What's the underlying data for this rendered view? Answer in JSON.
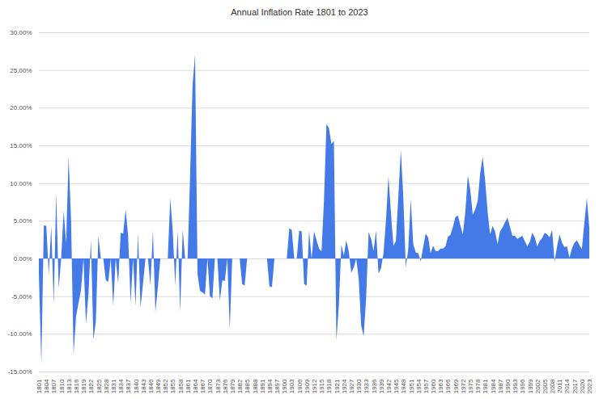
{
  "chart_data": {
    "type": "area",
    "title": "Annual Inflation Rate 1801 to 2023",
    "color": "#4479e8",
    "grid": true,
    "x": [
      1801,
      1802,
      1803,
      1804,
      1805,
      1806,
      1807,
      1808,
      1809,
      1810,
      1811,
      1812,
      1813,
      1814,
      1815,
      1816,
      1817,
      1818,
      1819,
      1820,
      1821,
      1822,
      1823,
      1824,
      1825,
      1826,
      1827,
      1828,
      1829,
      1830,
      1831,
      1832,
      1833,
      1834,
      1835,
      1836,
      1837,
      1838,
      1839,
      1840,
      1841,
      1842,
      1843,
      1844,
      1845,
      1846,
      1847,
      1848,
      1849,
      1850,
      1851,
      1852,
      1853,
      1854,
      1855,
      1856,
      1857,
      1858,
      1859,
      1860,
      1861,
      1862,
      1863,
      1864,
      1865,
      1866,
      1867,
      1868,
      1869,
      1870,
      1871,
      1872,
      1873,
      1874,
      1875,
      1876,
      1877,
      1878,
      1879,
      1880,
      1881,
      1882,
      1883,
      1884,
      1885,
      1886,
      1887,
      1888,
      1889,
      1890,
      1891,
      1892,
      1893,
      1894,
      1895,
      1896,
      1897,
      1898,
      1899,
      1900,
      1901,
      1902,
      1903,
      1904,
      1905,
      1906,
      1907,
      1908,
      1909,
      1910,
      1911,
      1912,
      1913,
      1914,
      1915,
      1916,
      1917,
      1918,
      1919,
      1920,
      1921,
      1922,
      1923,
      1924,
      1925,
      1926,
      1927,
      1928,
      1929,
      1930,
      1931,
      1932,
      1933,
      1934,
      1935,
      1936,
      1937,
      1938,
      1939,
      1940,
      1941,
      1942,
      1943,
      1944,
      1945,
      1946,
      1947,
      1948,
      1949,
      1950,
      1951,
      1952,
      1953,
      1954,
      1955,
      1956,
      1957,
      1958,
      1959,
      1960,
      1961,
      1962,
      1963,
      1964,
      1965,
      1966,
      1967,
      1968,
      1969,
      1970,
      1971,
      1972,
      1973,
      1974,
      1975,
      1976,
      1977,
      1978,
      1979,
      1980,
      1981,
      1982,
      1983,
      1984,
      1985,
      1986,
      1987,
      1988,
      1989,
      1990,
      1991,
      1992,
      1993,
      1994,
      1995,
      1996,
      1997,
      1998,
      1999,
      2000,
      2001,
      2002,
      2003,
      2004,
      2005,
      2006,
      2007,
      2008,
      2009,
      2010,
      2011,
      2012,
      2013,
      2014,
      2015,
      2016,
      2017,
      2018,
      2019,
      2020,
      2021,
      2022,
      2023
    ],
    "values": [
      -2.0,
      -14.0,
      4.4,
      4.3,
      -2.1,
      4.3,
      -6.0,
      8.7,
      -4.0,
      0.0,
      6.3,
      2.0,
      13.5,
      5.0,
      -12.7,
      -7.7,
      -5.9,
      -4.2,
      0.0,
      -8.7,
      -4.8,
      2.5,
      -10.8,
      -8.3,
      3.0,
      0.0,
      0.0,
      -2.9,
      -3.1,
      0.0,
      -6.3,
      0.0,
      -3.3,
      3.4,
      3.3,
      6.5,
      3.0,
      -5.9,
      0.0,
      -6.3,
      3.3,
      -6.5,
      -3.4,
      0.0,
      0.0,
      -3.6,
      3.7,
      -7.1,
      -3.8,
      0.0,
      0.0,
      0.0,
      0.0,
      8.0,
      3.7,
      -3.6,
      3.7,
      -7.1,
      3.8,
      0.0,
      0.0,
      11.0,
      23.0,
      27.0,
      -2.1,
      -4.3,
      -4.5,
      -4.8,
      0.0,
      -5.0,
      -5.3,
      0.0,
      0.0,
      -5.6,
      -2.9,
      -3.0,
      0.0,
      -9.4,
      0.0,
      0.0,
      0.0,
      0.0,
      -3.4,
      -3.6,
      0.0,
      0.0,
      0.0,
      0.0,
      0.0,
      0.0,
      0.0,
      0.0,
      0.0,
      -3.7,
      -3.8,
      0.0,
      0.0,
      0.0,
      0.0,
      0.0,
      0.0,
      4.0,
      3.8,
      0.0,
      0.0,
      3.7,
      3.6,
      -3.4,
      -3.6,
      3.7,
      0.0,
      3.6,
      2.4,
      1.3,
      0.9,
      7.7,
      17.8,
      17.3,
      15.2,
      15.6,
      -10.9,
      -6.2,
      1.8,
      0.4,
      2.4,
      0.9,
      -1.9,
      -1.2,
      0.0,
      -2.7,
      -8.9,
      -10.3,
      -5.2,
      3.5,
      2.6,
      1.0,
      3.7,
      -2.0,
      -1.3,
      0.7,
      5.0,
      10.9,
      6.1,
      1.7,
      2.3,
      8.3,
      14.4,
      8.1,
      -1.2,
      1.3,
      7.9,
      1.9,
      0.8,
      0.7,
      -0.4,
      1.5,
      3.3,
      2.8,
      0.7,
      1.7,
      1.0,
      1.0,
      1.3,
      1.3,
      1.6,
      2.9,
      3.1,
      4.2,
      5.5,
      5.7,
      4.4,
      3.2,
      6.2,
      11.0,
      9.1,
      5.8,
      6.5,
      7.6,
      11.3,
      13.5,
      10.3,
      6.2,
      3.2,
      4.3,
      3.6,
      1.9,
      3.6,
      4.1,
      4.8,
      5.4,
      4.2,
      3.0,
      3.0,
      2.6,
      2.8,
      3.0,
      2.3,
      1.6,
      2.2,
      3.4,
      2.8,
      1.6,
      2.3,
      2.7,
      3.4,
      3.2,
      2.8,
      3.8,
      -0.4,
      1.6,
      3.2,
      2.1,
      1.5,
      1.6,
      0.1,
      1.3,
      2.1,
      2.4,
      1.8,
      1.2,
      4.7,
      8.0,
      4.1
    ],
    "xlim": [
      1801,
      2023
    ],
    "xticks": [
      1801,
      1804,
      1807,
      1810,
      1813,
      1816,
      1819,
      1822,
      1825,
      1828,
      1831,
      1834,
      1837,
      1840,
      1843,
      1846,
      1849,
      1852,
      1855,
      1858,
      1861,
      1864,
      1867,
      1870,
      1873,
      1876,
      1879,
      1882,
      1885,
      1888,
      1891,
      1894,
      1897,
      1900,
      1903,
      1906,
      1909,
      1912,
      1915,
      1918,
      1921,
      1924,
      1927,
      1930,
      1933,
      1936,
      1939,
      1942,
      1945,
      1948,
      1951,
      1954,
      1957,
      1960,
      1963,
      1966,
      1969,
      1972,
      1975,
      1978,
      1981,
      1984,
      1987,
      1990,
      1993,
      1996,
      1999,
      2002,
      2005,
      2008,
      2011,
      2014,
      2017,
      2020,
      2023
    ],
    "ylim": [
      -15,
      30
    ],
    "yticks": [
      {
        "value": -15,
        "label": "-15.00%"
      },
      {
        "value": -10,
        "label": "-10.00%"
      },
      {
        "value": -5,
        "label": "-5.00%"
      },
      {
        "value": 0,
        "label": "0.00%"
      },
      {
        "value": 5,
        "label": "5.00%"
      },
      {
        "value": 10,
        "label": "10.00%"
      },
      {
        "value": 15,
        "label": "15.00%"
      },
      {
        "value": 20,
        "label": "20.00%"
      },
      {
        "value": 25,
        "label": "25.00%"
      },
      {
        "value": 30,
        "label": "30.00%"
      }
    ]
  }
}
